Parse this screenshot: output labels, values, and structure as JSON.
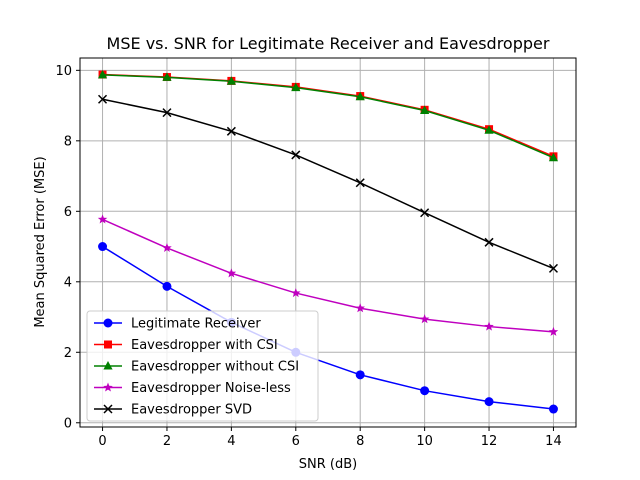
{
  "chart_data": {
    "type": "line",
    "title": "MSE vs. SNR for Legitimate Receiver and Eavesdropper",
    "xlabel": "SNR (dB)",
    "ylabel": "Mean Squared Error (MSE)",
    "x": [
      0,
      2,
      4,
      6,
      8,
      10,
      12,
      14
    ],
    "xlim": [
      -0.7,
      14.7
    ],
    "ylim": [
      -0.12,
      10.35
    ],
    "xticks": [
      0,
      2,
      4,
      6,
      8,
      10,
      12,
      14
    ],
    "yticks": [
      0,
      2,
      4,
      6,
      8,
      10
    ],
    "grid": true,
    "legend_position": "lower-left",
    "series": [
      {
        "name": "Legitimate Receiver",
        "color": "#0000ff",
        "marker": "circle",
        "values": [
          5.0,
          3.87,
          2.85,
          2.0,
          1.36,
          0.91,
          0.6,
          0.39
        ]
      },
      {
        "name": "Eavesdropper with CSI",
        "color": "#ff0000",
        "marker": "square",
        "values": [
          9.88,
          9.81,
          9.7,
          9.53,
          9.27,
          8.88,
          8.33,
          7.56
        ]
      },
      {
        "name": "Eavesdropper without CSI",
        "color": "#008000",
        "marker": "triangle",
        "values": [
          9.87,
          9.8,
          9.69,
          9.51,
          9.25,
          8.86,
          8.3,
          7.52
        ]
      },
      {
        "name": "Eavesdropper Noise-less",
        "color": "#bf00bf",
        "marker": "star",
        "values": [
          5.77,
          4.96,
          4.24,
          3.68,
          3.25,
          2.94,
          2.73,
          2.58
        ]
      },
      {
        "name": "Eavesdropper SVD",
        "color": "#000000",
        "marker": "x",
        "values": [
          9.18,
          8.8,
          8.27,
          7.6,
          6.81,
          5.96,
          5.12,
          4.38
        ]
      }
    ]
  }
}
